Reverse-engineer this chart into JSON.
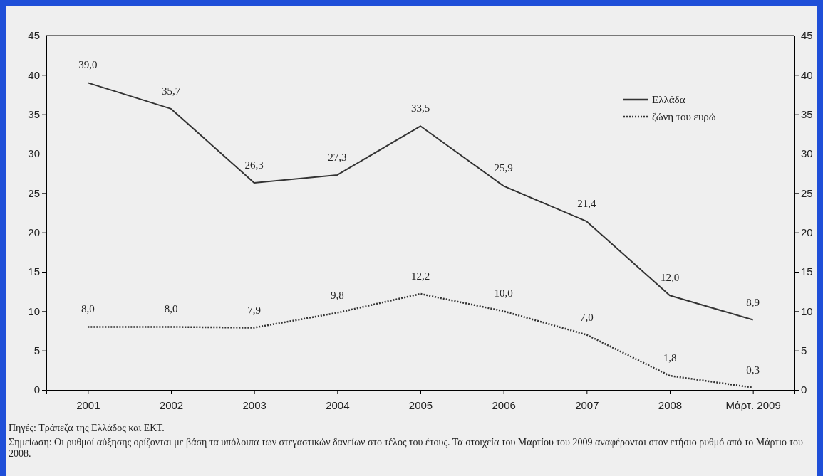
{
  "chart_data": {
    "type": "line",
    "categories": [
      "2001",
      "2002",
      "2003",
      "2004",
      "2005",
      "2006",
      "2007",
      "2008",
      "Μάρτ. 2009"
    ],
    "series": [
      {
        "name": "Ελλάδα",
        "color": "#333333",
        "line_style": "solid",
        "values": [
          39.0,
          35.7,
          26.3,
          27.3,
          33.5,
          25.9,
          21.4,
          12.0,
          8.9
        ],
        "value_labels": [
          "39,0",
          "35,7",
          "26,3",
          "27,3",
          "33,5",
          "25,9",
          "21,4",
          "12,0",
          "8,9"
        ]
      },
      {
        "name": "ζώνη του ευρώ",
        "color": "#333333",
        "line_style": "dotted",
        "values": [
          8.0,
          8.0,
          7.9,
          9.8,
          12.2,
          10.0,
          7.0,
          1.8,
          0.3
        ],
        "value_labels": [
          "8,0",
          "8,0",
          "7,9",
          "9,8",
          "12,2",
          "10,0",
          "7,0",
          "1,8",
          "0,3"
        ]
      }
    ],
    "ylim": [
      0,
      45
    ],
    "yticks": [
      0,
      5,
      10,
      15,
      20,
      25,
      30,
      35,
      40,
      45
    ],
    "y2lim": [
      0,
      45
    ],
    "y2ticks": [
      0,
      5,
      10,
      15,
      20,
      25,
      30,
      35,
      40,
      45
    ],
    "grid": false,
    "legend": "top right",
    "marker": "none",
    "annotations": [
      "Πηγές: Τράπεζα της Ελλάδος και ΕΚΤ.",
      "Σημείωση: Οι ρυθμοί αύξησης ορίζονται με βάση τα υπόλοιπα των στεγαστικών δανείων στο τέλος του έτους. Τα στοιχεία του Μαρτίου του 2009 αναφέρονται στον ετήσιο ρυθμό από το Μάρτιο του 2008."
    ]
  }
}
